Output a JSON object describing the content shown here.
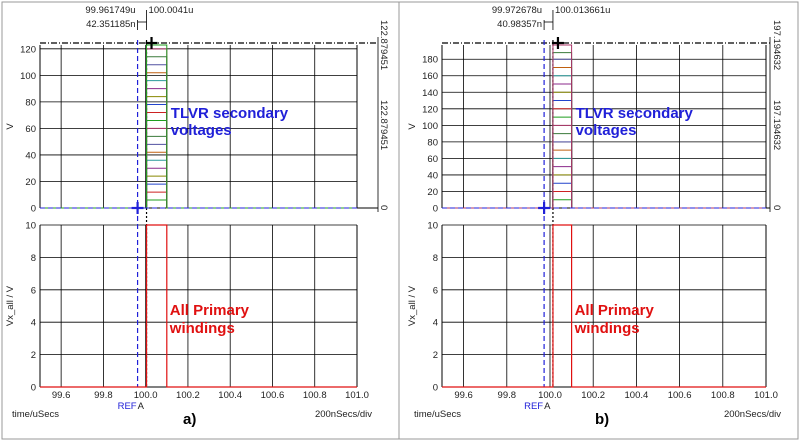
{
  "chart_data": [
    {
      "type": "line",
      "panel_label": "a)",
      "x_axis": {
        "label": "time/uSecs",
        "scale_note": "200nSecs/div",
        "range": [
          99.5,
          101.0
        ],
        "ticks": [
          "99.6",
          "99.8",
          "100.0",
          "100.2",
          "100.4",
          "100.6",
          "100.8",
          "101.0"
        ],
        "tick_values": [
          99.6,
          99.8,
          100.0,
          100.2,
          100.4,
          100.6,
          100.8,
          101.0
        ],
        "ref_markers": [
          "REF",
          "A"
        ]
      },
      "cursors": {
        "ref_time": "99.961749u",
        "a_time": "100.0041u",
        "delta": "42.351185n",
        "ref_value": 99.961749,
        "a_value": 100.0041
      },
      "top_plot": {
        "ylabel": "V",
        "ylim": [
          0,
          122.879451
        ],
        "yticks": [
          0,
          20,
          40,
          60,
          80,
          100,
          120
        ],
        "right_scale_top": "122.879451",
        "right_scale_mid": "122.879451",
        "right_scale_bottom": "0",
        "annotation": [
          "TLVR secondary",
          "voltages"
        ],
        "pulse_start": 100.0041,
        "pulse_end": 100.1,
        "series_levels": [
          6,
          12,
          18,
          24,
          30,
          36,
          42,
          48,
          54,
          60,
          66,
          72,
          78,
          84,
          90,
          96,
          102,
          108,
          114,
          120,
          122.879451
        ]
      },
      "bottom_plot": {
        "ylabel": "Vx_all / V",
        "ylim": [
          0,
          10
        ],
        "yticks": [
          0,
          2,
          4,
          6,
          8,
          10
        ],
        "annotation": [
          "All Primary",
          "windings"
        ],
        "pulse_start": 100.0041,
        "pulse_end": 100.1,
        "pulse_high": 10
      }
    },
    {
      "type": "line",
      "panel_label": "b)",
      "x_axis": {
        "label": "time/uSecs",
        "scale_note": "200nSecs/div",
        "range": [
          99.5,
          101.0
        ],
        "ticks": [
          "99.6",
          "99.8",
          "100.0",
          "100.2",
          "100.4",
          "100.6",
          "100.8",
          "101.0"
        ],
        "tick_values": [
          99.6,
          99.8,
          100.0,
          100.2,
          100.4,
          100.6,
          100.8,
          101.0
        ],
        "ref_markers": [
          "REF",
          "A"
        ]
      },
      "cursors": {
        "ref_time": "99.972678u",
        "a_time": "100.013661u",
        "delta": "40.98357n",
        "ref_value": 99.972678,
        "a_value": 100.013661
      },
      "top_plot": {
        "ylabel": "V",
        "ylim": [
          0,
          197.194632
        ],
        "yticks": [
          0,
          20,
          40,
          60,
          80,
          100,
          120,
          140,
          160,
          180
        ],
        "right_scale_top": "197.194632",
        "right_scale_mid": "197.194632",
        "right_scale_bottom": "0",
        "annotation": [
          "TLVR secondary",
          "voltages"
        ],
        "pulse_start": 100.013661,
        "pulse_end": 100.1,
        "series_levels": [
          10,
          20,
          30,
          40,
          50,
          60,
          70,
          80,
          90,
          100,
          110,
          120,
          130,
          140,
          150,
          160,
          170,
          180,
          188,
          197.194632
        ]
      },
      "bottom_plot": {
        "ylabel": "Vx_all / V",
        "ylim": [
          0,
          10
        ],
        "yticks": [
          0,
          2,
          4,
          6,
          8,
          10
        ],
        "annotation": [
          "All Primary",
          "windings"
        ],
        "pulse_start": 100.013661,
        "pulse_end": 100.1,
        "pulse_high": 10
      }
    }
  ],
  "colors": {
    "series": [
      "#1f9e1f",
      "#cc2222",
      "#2244cc",
      "#888800",
      "#8b2a8b",
      "#2a9a9a",
      "#c06010",
      "#5050a0",
      "#3a7a3a",
      "#aa3366"
    ],
    "cursor_ref": "#2020d8",
    "cursor_a": "#000000",
    "primary_pulse": "#e01010",
    "grid": "#000000"
  }
}
